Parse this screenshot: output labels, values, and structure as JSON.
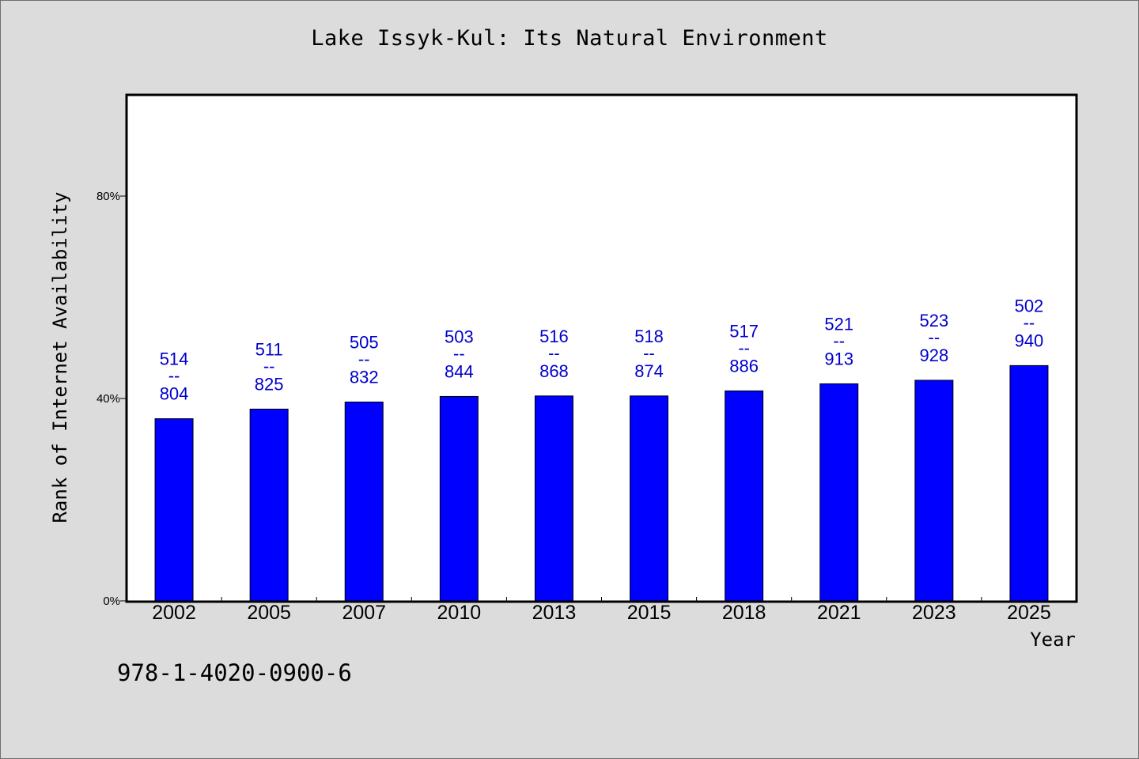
{
  "chart_data": {
    "type": "bar",
    "title": "Lake Issyk-Kul: Its Natural Environment",
    "xlabel": "Year",
    "ylabel": "Rank of Internet Availability",
    "ylim": [
      0,
      100
    ],
    "yticks": [
      0,
      40,
      80
    ],
    "ytick_labels": [
      "0%",
      "40%",
      "80%"
    ],
    "categories": [
      "2002",
      "2005",
      "2007",
      "2010",
      "2013",
      "2015",
      "2018",
      "2021",
      "2023",
      "2025"
    ],
    "values": [
      36.0,
      37.9,
      39.3,
      40.4,
      40.5,
      40.5,
      41.5,
      42.9,
      43.6,
      46.5
    ],
    "bar_labels": [
      {
        "top": "514",
        "mid": "--",
        "bottom": "804"
      },
      {
        "top": "511",
        "mid": "--",
        "bottom": "825"
      },
      {
        "top": "505",
        "mid": "--",
        "bottom": "832"
      },
      {
        "top": "503",
        "mid": "--",
        "bottom": "844"
      },
      {
        "top": "516",
        "mid": "--",
        "bottom": "868"
      },
      {
        "top": "518",
        "mid": "--",
        "bottom": "874"
      },
      {
        "top": "517",
        "mid": "--",
        "bottom": "886"
      },
      {
        "top": "521",
        "mid": "--",
        "bottom": "913"
      },
      {
        "top": "523",
        "mid": "--",
        "bottom": "928"
      },
      {
        "top": "502",
        "mid": "--",
        "bottom": "940"
      }
    ],
    "bar_color": "#0000ff",
    "label_color": "#0000cc",
    "grid": false,
    "legend": "none"
  },
  "footer": {
    "isbn": "978-1-4020-0900-6"
  }
}
